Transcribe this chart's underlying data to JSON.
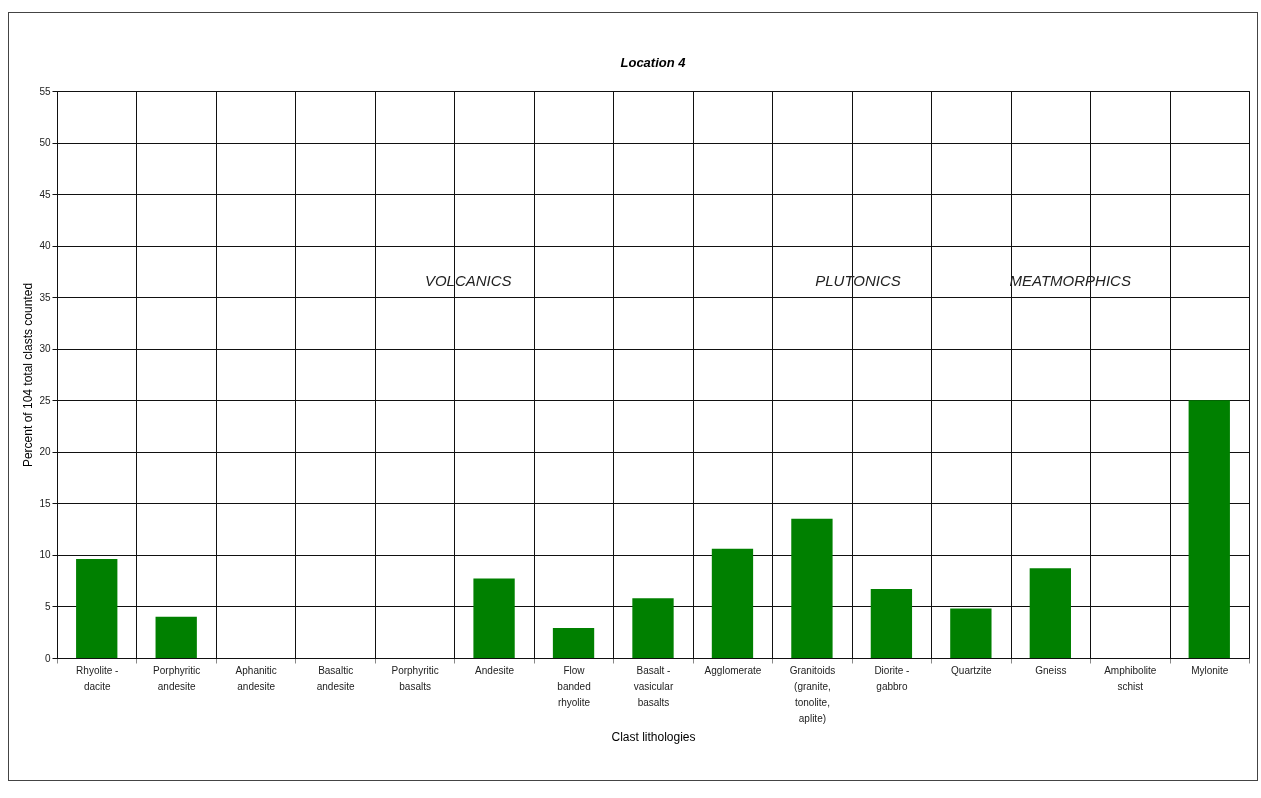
{
  "chart_data": {
    "type": "bar",
    "title": "Location 4",
    "xlabel": "Clast lithologies",
    "ylabel": "Percent of 104 total clasts counted",
    "categories": [
      "Rhyolite - dacite",
      "Porphyritic andesite",
      "Aphanitic andesite",
      "Basaltic andesite",
      "Porphyritic basalts",
      "Andesite",
      "Flow banded rhyolite",
      "Basalt - vasicular basalts",
      "Agglomerate",
      "Granitoids (granite, tonolite, aplite)",
      "Diorite - gabbro",
      "Quartzite",
      "Gneiss",
      "Amphibolite schist",
      "Mylonite"
    ],
    "values": [
      9.6,
      4.0,
      0,
      0,
      0,
      7.7,
      2.9,
      5.8,
      10.6,
      13.5,
      6.7,
      4.8,
      8.7,
      0,
      25.0
    ],
    "color": "#008000",
    "ylim": [
      0,
      55
    ],
    "yticks": [
      0,
      5,
      10,
      15,
      20,
      25,
      30,
      35,
      40,
      45,
      50,
      55
    ],
    "grid": true,
    "annotations": [
      "VOLCANICS",
      "PLUTONICS",
      "MEATMORPHICS"
    ]
  }
}
